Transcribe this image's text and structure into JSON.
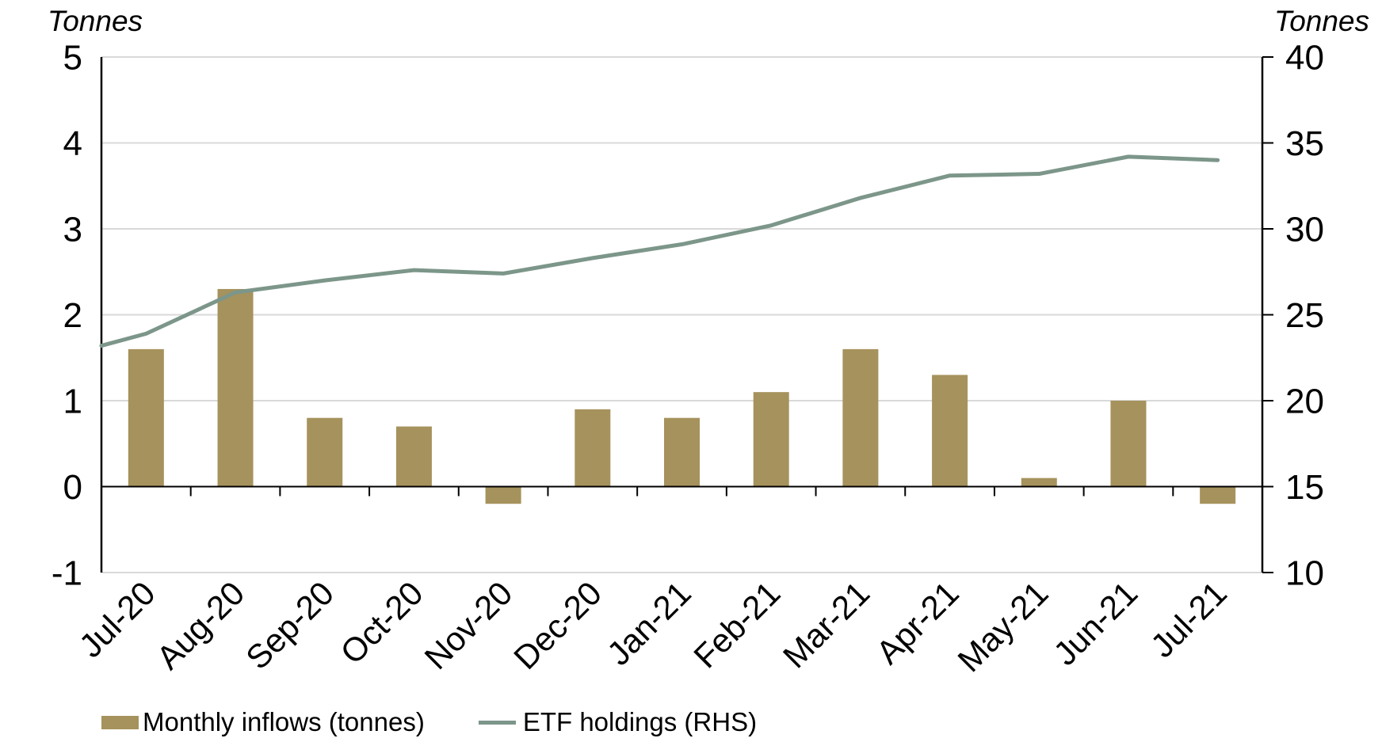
{
  "chart_data": {
    "type": "combo_bar_line",
    "categories": [
      "Jul-20",
      "Aug-20",
      "Sep-20",
      "Oct-20",
      "Nov-20",
      "Dec-20",
      "Jan-21",
      "Feb-21",
      "Mar-21",
      "Apr-21",
      "May-21",
      "Jun-21",
      "Jul-21"
    ],
    "series": [
      {
        "name": "Monthly inflows (tonnes)",
        "chart_type": "bar",
        "axis": "left",
        "color": "#A6925C",
        "values": [
          1.6,
          2.3,
          0.8,
          0.7,
          -0.2,
          0.9,
          0.8,
          1.1,
          1.6,
          1.3,
          0.1,
          1.0,
          -0.2
        ]
      },
      {
        "name": "ETF holdings (RHS)",
        "chart_type": "line",
        "axis": "right",
        "color": "#7C968A",
        "edge_start_value": 23.2,
        "values": [
          23.9,
          26.3,
          27.0,
          27.6,
          27.4,
          28.3,
          29.1,
          30.2,
          31.8,
          33.1,
          33.2,
          34.2,
          34.0
        ]
      }
    ],
    "left_axis": {
      "title": "Tonnes",
      "min": -1,
      "max": 5,
      "ticks": [
        5,
        4,
        3,
        2,
        1,
        0,
        -1
      ]
    },
    "right_axis": {
      "title": "Tonnes",
      "min": 10,
      "max": 40,
      "ticks": [
        40,
        35,
        30,
        25,
        20,
        15,
        10
      ]
    },
    "grid": true,
    "legend_position": "bottom-left"
  },
  "colors": {
    "gridline": "#D9D9D9",
    "axis": "#000000",
    "text": "#000000",
    "background": "#FFFFFF"
  }
}
